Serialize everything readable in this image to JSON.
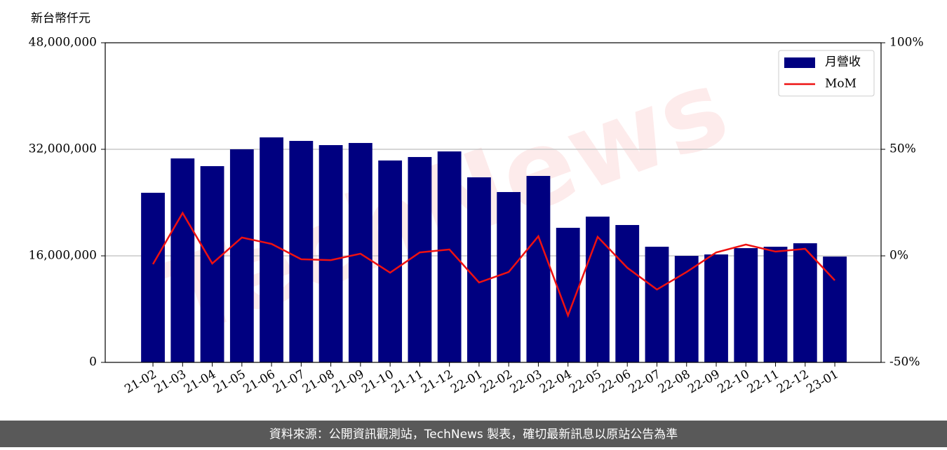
{
  "chart_data": {
    "type": "bar",
    "unit_label": "新台幣仟元",
    "source": "資料來源：公開資訊觀測站，TechNews 製表，確切最新訊息以原站公告為準",
    "watermark": "TechNews",
    "categories": [
      "21-02",
      "21-03",
      "21-04",
      "21-05",
      "21-06",
      "21-07",
      "21-08",
      "21-09",
      "21-10",
      "21-11",
      "21-12",
      "22-01",
      "22-02",
      "22-03",
      "22-04",
      "22-05",
      "22-06",
      "22-07",
      "22-08",
      "22-09",
      "22-10",
      "22-11",
      "22-12",
      "23-01"
    ],
    "series": [
      {
        "name": "月營收",
        "type": "bar",
        "color": "#000080",
        "axis": "y",
        "values": [
          25470000,
          30630000,
          29470000,
          32000000,
          33790000,
          33260000,
          32630000,
          32950000,
          30320000,
          30840000,
          31680000,
          27790000,
          25580000,
          28000000,
          20210000,
          21890000,
          20630000,
          17370000,
          16000000,
          16210000,
          17160000,
          17370000,
          17890000,
          15890000
        ]
      },
      {
        "name": "MoM",
        "type": "line",
        "color": "#ee1111",
        "axis": "y2",
        "values": [
          -3.9,
          20.1,
          -3.6,
          8.6,
          5.6,
          -1.6,
          -2.0,
          1.0,
          -7.9,
          1.6,
          3.0,
          -12.5,
          -7.6,
          9.2,
          -28.0,
          8.9,
          -5.6,
          -15.8,
          -7.6,
          1.6,
          5.3,
          2.0,
          3.3,
          -11.5
        ]
      }
    ],
    "ylim": [
      0,
      48000000
    ],
    "yticks": [
      0,
      {
        "value": 16000000,
        "label": "16,000,000"
      },
      {
        "value": 32000000,
        "label": "32,000,000"
      },
      {
        "value": 48000000,
        "label": "48,000,000"
      }
    ],
    "y2lim": [
      -50,
      100
    ],
    "y2ticks": [
      {
        "value": -50,
        "label": "-50%"
      },
      {
        "value": 0,
        "label": "0%"
      },
      {
        "value": 50,
        "label": "50%"
      },
      {
        "value": 100,
        "label": "100%"
      }
    ],
    "grid": true,
    "legend": "upper right"
  }
}
